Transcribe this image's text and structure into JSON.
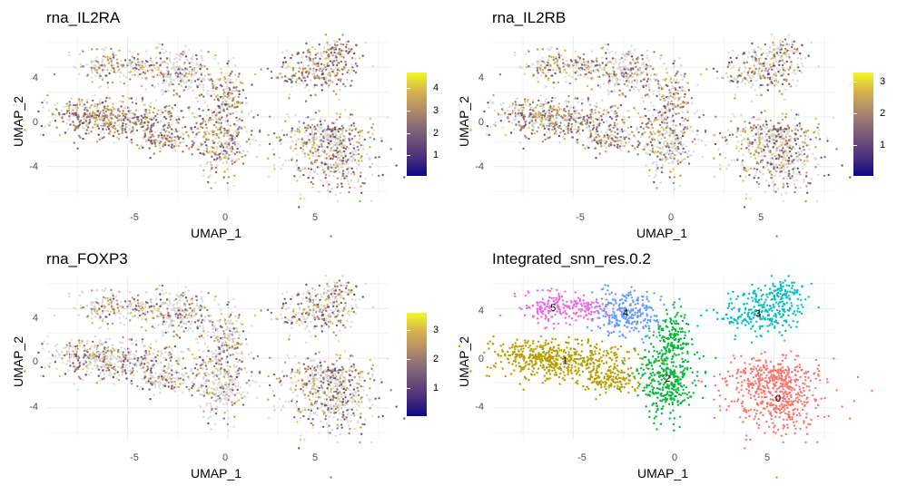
{
  "chart_data": [
    {
      "type": "scatter",
      "title": "rna_IL2RA",
      "xlabel": "UMAP_1",
      "ylabel": "UMAP_2",
      "xticks": [
        "-5",
        "0",
        "5"
      ],
      "yticks": [
        "4",
        "0",
        "-4"
      ],
      "xlim": [
        -9,
        8
      ],
      "ylim": [
        -6.5,
        6.5
      ],
      "colorbar": {
        "ticks": [
          "4",
          "3",
          "2",
          "1"
        ],
        "range": [
          0,
          4.5
        ],
        "colors": [
          "#0d0887",
          "#f0f921"
        ]
      },
      "grid": true
    },
    {
      "type": "scatter",
      "title": "rna_IL2RB",
      "xlabel": "UMAP_1",
      "ylabel": "UMAP_2",
      "xticks": [
        "-5",
        "0",
        "5"
      ],
      "yticks": [
        "4",
        "0",
        "-4"
      ],
      "xlim": [
        -9,
        8
      ],
      "ylim": [
        -6.5,
        6.5
      ],
      "colorbar": {
        "ticks": [
          "3",
          "2",
          "1"
        ],
        "range": [
          0,
          3.3
        ],
        "colors": [
          "#0d0887",
          "#f0f921"
        ]
      },
      "grid": true
    },
    {
      "type": "scatter",
      "title": "rna_FOXP3",
      "xlabel": "UMAP_1",
      "ylabel": "UMAP_2",
      "xticks": [
        "-5",
        "0",
        "5"
      ],
      "yticks": [
        "4",
        "0",
        "-4"
      ],
      "xlim": [
        -9,
        8
      ],
      "ylim": [
        -6.5,
        6.5
      ],
      "colorbar": {
        "ticks": [
          "3",
          "2",
          "1"
        ],
        "range": [
          0,
          3.5
        ],
        "colors": [
          "#0d0887",
          "#f0f921"
        ]
      },
      "grid": true
    },
    {
      "type": "scatter",
      "title": "Integrated_snn_res.0.2",
      "xlabel": "UMAP_1",
      "ylabel": "UMAP_2",
      "xticks": [
        "-5",
        "0",
        "5"
      ],
      "yticks": [
        "4",
        "0",
        "-4"
      ],
      "xlim": [
        -9,
        8
      ],
      "ylim": [
        -6.5,
        6.5
      ],
      "grid": true,
      "clusters": [
        {
          "label": "0",
          "x": 5.2,
          "y": -3.2,
          "color": "#f8766d"
        },
        {
          "label": "1",
          "x": -5.4,
          "y": -0.2,
          "color": "#b79f00"
        },
        {
          "label": "2",
          "x": -0.3,
          "y": -1.6,
          "color": "#00ba38"
        },
        {
          "label": "3",
          "x": 4.2,
          "y": 3.6,
          "color": "#00bfc4"
        },
        {
          "label": "4",
          "x": -2.4,
          "y": 3.7,
          "color": "#619cff"
        },
        {
          "label": "5",
          "x": -6.0,
          "y": 4.1,
          "color": "#f564e3"
        }
      ]
    }
  ]
}
